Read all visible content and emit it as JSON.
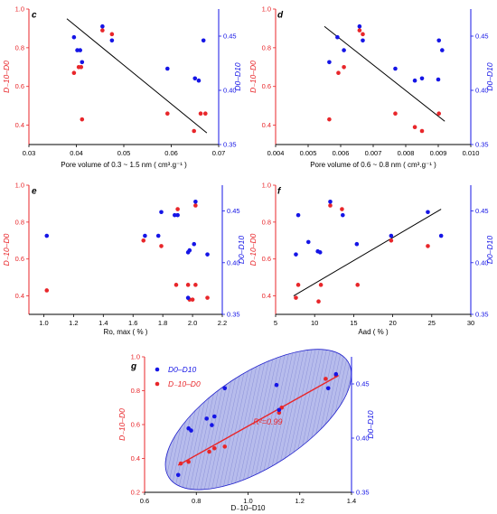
{
  "figure": {
    "colors": {
      "red": "#e8262a",
      "blue": "#1515e6",
      "line": "#000000",
      "ellipse_fill": "#b7bcec",
      "ellipse_stroke": "#2222cc"
    }
  },
  "chart_data": [
    {
      "panel": "c",
      "type": "scatter",
      "xlabel": "Pore volume of 0.3 ~ 1.5 nm ( cm³.g⁻¹ )",
      "ylabel_left": "D₋10–D0",
      "ylabel_right": "D0–D10",
      "xlim": [
        0.03,
        0.07
      ],
      "ylim_left": [
        0.3,
        1.0
      ],
      "ylim_right": [
        0.35,
        0.475
      ],
      "x_ticks": [
        0.03,
        0.04,
        0.05,
        0.06,
        0.07
      ],
      "x_tick_labels": [
        "0.03",
        "0.04",
        "0.05",
        "0.06",
        "0.07"
      ],
      "y_ticks_left": [
        0.4,
        0.6,
        0.8,
        1.0
      ],
      "y_tick_labels_left": [
        "0.4",
        "0.6",
        "0.8",
        "1.0"
      ],
      "y_ticks_right": [
        0.35,
        0.4,
        0.45
      ],
      "y_tick_labels_right": [
        "0.35",
        "0.40",
        "0.45"
      ],
      "red_points": [
        [
          0.0395,
          0.67
        ],
        [
          0.0405,
          0.7
        ],
        [
          0.041,
          0.7
        ],
        [
          0.0412,
          0.43
        ],
        [
          0.0455,
          0.89
        ],
        [
          0.0475,
          0.87
        ],
        [
          0.0592,
          0.46
        ],
        [
          0.0648,
          0.37
        ],
        [
          0.0662,
          0.46
        ],
        [
          0.0672,
          0.46
        ]
      ],
      "blue_points": [
        [
          0.0395,
          0.449
        ],
        [
          0.0402,
          0.437
        ],
        [
          0.0408,
          0.437
        ],
        [
          0.0412,
          0.426
        ],
        [
          0.0455,
          0.459
        ],
        [
          0.0475,
          0.446
        ],
        [
          0.0592,
          0.42
        ],
        [
          0.065,
          0.411
        ],
        [
          0.0658,
          0.409
        ],
        [
          0.0668,
          0.446
        ]
      ],
      "fit_line": [
        [
          0.038,
          0.95
        ],
        [
          0.0675,
          0.36
        ]
      ],
      "grid": false
    },
    {
      "panel": "d",
      "type": "scatter",
      "xlabel": "Pore volume of 0.6 ~ 0.8 nm ( cm³.g⁻¹ )",
      "ylabel_left": "D₋10–D0",
      "ylabel_right": "D0–D10",
      "xlim": [
        0.004,
        0.01
      ],
      "ylim_left": [
        0.3,
        1.0
      ],
      "ylim_right": [
        0.35,
        0.475
      ],
      "x_ticks": [
        0.004,
        0.005,
        0.006,
        0.007,
        0.008,
        0.009,
        0.01
      ],
      "x_tick_labels": [
        "0.004",
        "0.005",
        "0.006",
        "0.007",
        "0.008",
        "0.009",
        "0.010"
      ],
      "y_ticks_left": [
        0.4,
        0.6,
        0.8,
        1.0
      ],
      "y_tick_labels_left": [
        "0.4",
        "0.6",
        "0.8",
        "1.0"
      ],
      "y_ticks_right": [
        0.35,
        0.4,
        0.45
      ],
      "y_tick_labels_right": [
        "0.35",
        "0.40",
        "0.45"
      ],
      "red_points": [
        [
          0.00565,
          0.43
        ],
        [
          0.00593,
          0.67
        ],
        [
          0.0061,
          0.7
        ],
        [
          0.00658,
          0.89
        ],
        [
          0.00668,
          0.87
        ],
        [
          0.00768,
          0.46
        ],
        [
          0.00828,
          0.39
        ],
        [
          0.0085,
          0.37
        ],
        [
          0.00902,
          0.46
        ]
      ],
      "blue_points": [
        [
          0.00565,
          0.426
        ],
        [
          0.0059,
          0.449
        ],
        [
          0.0061,
          0.437
        ],
        [
          0.00658,
          0.459
        ],
        [
          0.00668,
          0.446
        ],
        [
          0.00768,
          0.42
        ],
        [
          0.00828,
          0.409
        ],
        [
          0.0085,
          0.411
        ],
        [
          0.00902,
          0.446
        ],
        [
          0.00912,
          0.437
        ],
        [
          0.009,
          0.41
        ]
      ],
      "fit_line": [
        [
          0.0055,
          0.91
        ],
        [
          0.0092,
          0.42
        ]
      ],
      "grid": false
    },
    {
      "panel": "e",
      "type": "scatter",
      "xlabel": "Ro, max ( % )",
      "ylabel_left": "D₋10–D0",
      "ylabel_right": "D0–D10",
      "xlim": [
        0.9,
        2.2
      ],
      "ylim_left": [
        0.3,
        1.0
      ],
      "ylim_right": [
        0.35,
        0.475
      ],
      "x_ticks": [
        1.0,
        1.2,
        1.4,
        1.6,
        1.8,
        2.0,
        2.2
      ],
      "x_tick_labels": [
        "1.0",
        "1.2",
        "1.4",
        "1.6",
        "1.8",
        "2.0",
        "2.2"
      ],
      "y_ticks_left": [
        0.4,
        0.6,
        0.8,
        1.0
      ],
      "y_tick_labels_left": [
        "0.4",
        "0.6",
        "0.8",
        "1.0"
      ],
      "y_ticks_right": [
        0.35,
        0.4,
        0.45
      ],
      "y_tick_labels_right": [
        "0.35",
        "0.40",
        "0.45"
      ],
      "red_points": [
        [
          1.02,
          0.43
        ],
        [
          1.67,
          0.7
        ],
        [
          1.79,
          0.67
        ],
        [
          1.89,
          0.46
        ],
        [
          1.9,
          0.87
        ],
        [
          1.97,
          0.46
        ],
        [
          1.98,
          0.38
        ],
        [
          2.0,
          0.38
        ],
        [
          2.02,
          0.46
        ],
        [
          2.02,
          0.89
        ],
        [
          2.1,
          0.39
        ]
      ],
      "blue_points": [
        [
          1.02,
          0.426
        ],
        [
          1.68,
          0.426
        ],
        [
          1.77,
          0.426
        ],
        [
          1.79,
          0.449
        ],
        [
          1.88,
          0.446
        ],
        [
          1.9,
          0.446
        ],
        [
          1.97,
          0.41
        ],
        [
          1.98,
          0.412
        ],
        [
          2.01,
          0.418
        ],
        [
          2.02,
          0.459
        ],
        [
          2.1,
          0.408
        ],
        [
          1.97,
          0.366
        ]
      ],
      "grid": false
    },
    {
      "panel": "f",
      "type": "scatter",
      "xlabel": "Aad ( % )",
      "ylabel_left": "D₋10–D0",
      "ylabel_right": "D0–D10",
      "xlim": [
        5,
        30
      ],
      "ylim_left": [
        0.3,
        1.0
      ],
      "ylim_right": [
        0.35,
        0.475
      ],
      "x_ticks": [
        5,
        10,
        15,
        20,
        25,
        30
      ],
      "x_tick_labels": [
        "5",
        "10",
        "15",
        "20",
        "25",
        "30"
      ],
      "y_ticks_left": [
        0.4,
        0.6,
        0.8,
        1.0
      ],
      "y_tick_labels_left": [
        "0.4",
        "0.6",
        "0.8",
        "1.0"
      ],
      "y_ticks_right": [
        0.35,
        0.4,
        0.45
      ],
      "y_tick_labels_right": [
        "0.35",
        "0.40",
        "0.45"
      ],
      "red_points": [
        [
          7.6,
          0.39
        ],
        [
          7.9,
          0.46
        ],
        [
          10.5,
          0.37
        ],
        [
          10.8,
          0.46
        ],
        [
          12,
          0.89
        ],
        [
          13.5,
          0.87
        ],
        [
          15.5,
          0.46
        ],
        [
          19.8,
          0.7
        ],
        [
          24.5,
          0.67
        ]
      ],
      "blue_points": [
        [
          7.6,
          0.408
        ],
        [
          7.9,
          0.446
        ],
        [
          9.2,
          0.42
        ],
        [
          10.4,
          0.411
        ],
        [
          10.7,
          0.41
        ],
        [
          12,
          0.459
        ],
        [
          13.6,
          0.446
        ],
        [
          15.4,
          0.418
        ],
        [
          19.8,
          0.426
        ],
        [
          24.5,
          0.449
        ],
        [
          26.2,
          0.426
        ]
      ],
      "fit_line": [
        [
          7.3,
          0.4
        ],
        [
          26.2,
          0.87
        ]
      ],
      "grid": false
    },
    {
      "panel": "g",
      "type": "scatter",
      "xlabel": "D₋10–D10",
      "ylabel_left": "D₋10–D0",
      "ylabel_right": "D0–D10",
      "xlim": [
        0.6,
        1.4
      ],
      "ylim_left": [
        0.2,
        1.0
      ],
      "ylim_right": [
        0.35,
        0.475
      ],
      "x_ticks": [
        0.6,
        0.8,
        1.0,
        1.2,
        1.4
      ],
      "x_tick_labels": [
        "0.6",
        "0.8",
        "1.0",
        "1.2",
        "1.4"
      ],
      "y_ticks_left": [
        0.2,
        0.4,
        0.6,
        0.8,
        1.0
      ],
      "y_tick_labels_left": [
        "0.2",
        "0.4",
        "0.6",
        "0.8",
        "1.0"
      ],
      "y_ticks_right": [
        0.35,
        0.4,
        0.45
      ],
      "y_tick_labels_right": [
        "0.35",
        "0.40",
        "0.45"
      ],
      "legend": [
        "D0–D10",
        "D₋10–D0"
      ],
      "annotation": "R²=0.99",
      "red_points": [
        [
          0.74,
          0.37
        ],
        [
          0.77,
          0.38
        ],
        [
          0.85,
          0.44
        ],
        [
          0.87,
          0.46
        ],
        [
          0.91,
          0.47
        ],
        [
          1.12,
          0.67
        ],
        [
          1.13,
          0.7
        ],
        [
          1.3,
          0.87
        ],
        [
          1.34,
          0.89
        ]
      ],
      "blue_points": [
        [
          0.73,
          0.366
        ],
        [
          0.77,
          0.409
        ],
        [
          0.78,
          0.407
        ],
        [
          0.84,
          0.418
        ],
        [
          0.86,
          0.412
        ],
        [
          0.87,
          0.42
        ],
        [
          0.91,
          0.446
        ],
        [
          1.11,
          0.449
        ],
        [
          1.12,
          0.426
        ],
        [
          1.31,
          0.446
        ],
        [
          1.34,
          0.459
        ]
      ],
      "fit_line": [
        [
          0.73,
          0.36
        ],
        [
          1.35,
          0.89
        ]
      ],
      "grid": false
    }
  ]
}
